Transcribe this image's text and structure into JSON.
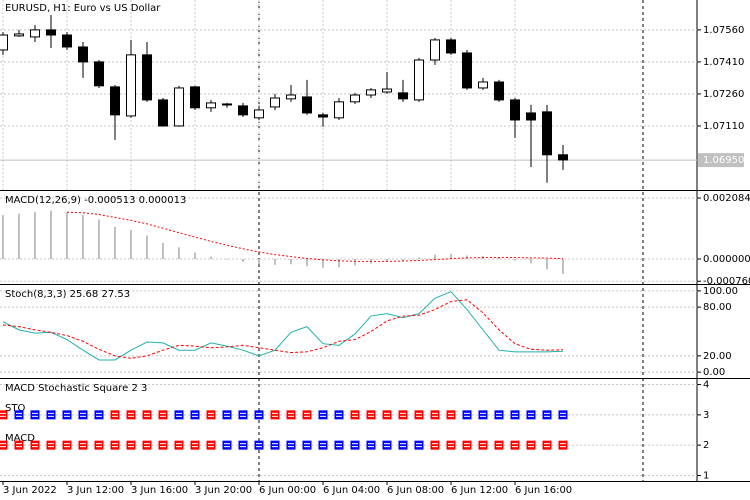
{
  "chart_data": [
    {
      "type": "candlestick",
      "title": "EURUSD, H1:  Euro vs US Dollar",
      "categories": [
        "3 Jun 2022",
        null,
        null,
        null,
        "3 Jun 12:00",
        null,
        null,
        null,
        "3 Jun 16:00",
        null,
        null,
        null,
        "3 Jun 20:00",
        null,
        null,
        null,
        "6 Jun 00:00",
        null,
        null,
        null,
        "6 Jun 04:00",
        null,
        null,
        null,
        "6 Jun 08:00",
        null,
        null,
        null,
        "6 Jun 12:00",
        null,
        null,
        null,
        "6 Jun 16:00",
        null,
        null,
        null
      ],
      "open": [
        1.07466,
        1.07532,
        1.07527,
        1.0756,
        1.07536,
        1.0748,
        1.0741,
        1.07293,
        1.07157,
        1.07443,
        1.07232,
        1.0711,
        1.07293,
        1.07195,
        1.07209,
        1.07204,
        1.07148,
        1.07199,
        1.07237,
        1.07246,
        1.07162,
        1.07148,
        1.07223,
        1.07255,
        1.07269,
        1.07265,
        1.07232,
        1.07419,
        1.07513,
        1.07452,
        1.07288,
        1.07316,
        1.07232,
        1.07171,
        1.07176,
        1.06975
      ],
      "high": [
        1.0755,
        1.0756,
        1.07583,
        1.0763,
        1.0755,
        1.07503,
        1.07419,
        1.07302,
        1.07513,
        1.07503,
        1.07241,
        1.07298,
        1.07298,
        1.07232,
        1.07218,
        1.07218,
        1.07204,
        1.0726,
        1.07302,
        1.07326,
        1.07171,
        1.07241,
        1.07265,
        1.07288,
        1.07363,
        1.07326,
        1.07429,
        1.07522,
        1.07522,
        1.07466,
        1.07335,
        1.07326,
        1.07241,
        1.07209,
        1.07209,
        1.07021
      ],
      "low": [
        1.07443,
        1.07527,
        1.07503,
        1.07475,
        1.07466,
        1.07335,
        1.07288,
        1.07045,
        1.07148,
        1.07223,
        1.07106,
        1.07106,
        1.07185,
        1.07176,
        1.07195,
        1.07152,
        1.07138,
        1.07185,
        1.07223,
        1.07162,
        1.07106,
        1.07138,
        1.07213,
        1.07241,
        1.0726,
        1.07223,
        1.07223,
        1.07396,
        1.07443,
        1.07279,
        1.07279,
        1.07223,
        1.07054,
        1.06918,
        1.06844,
        1.06904
      ],
      "close": [
        1.07536,
        1.07541,
        1.0756,
        1.07536,
        1.0748,
        1.0741,
        1.07298,
        1.07162,
        1.07443,
        1.07232,
        1.0711,
        1.07288,
        1.07195,
        1.07218,
        1.07213,
        1.07162,
        1.07185,
        1.07241,
        1.07255,
        1.07171,
        1.07152,
        1.07223,
        1.07255,
        1.07279,
        1.07283,
        1.07237,
        1.07419,
        1.07513,
        1.07452,
        1.07288,
        1.07316,
        1.07232,
        1.07138,
        1.07138,
        1.06975,
        1.06951
      ],
      "up_color": "#ffffff",
      "down_color": "#000000",
      "ylim": [
        1.0681,
        1.077
      ],
      "yticks": [
        {
          "value": 1.0756,
          "label": "1.07560"
        },
        {
          "value": 1.0741,
          "label": "1.07410"
        },
        {
          "value": 1.0726,
          "label": "1.07260"
        },
        {
          "value": 1.0711,
          "label": "1.07110"
        }
      ],
      "current_price": {
        "value": 1.0695,
        "label": "1.06950"
      },
      "grid": true
    },
    {
      "type": "macd",
      "title": "MACD(12,26,9) -0.000513 0.000013",
      "histogram": {
        "color": "#c0c0c0",
        "values": [
          0.0015,
          0.00155,
          0.0016,
          0.00165,
          0.00158,
          0.0015,
          0.00135,
          0.0011,
          0.001,
          0.0008,
          0.00055,
          0.0004,
          0.00022,
          8e-05,
          -2e-05,
          -0.0001,
          -0.00018,
          -0.0002,
          -0.00018,
          -0.00025,
          -0.0003,
          -0.00028,
          -0.00022,
          -0.00015,
          -0.0001,
          -8e-05,
          5e-05,
          0.00015,
          0.00018,
          0.00012,
          0.0001,
          5e-05,
          -5e-05,
          -0.00015,
          -0.00035,
          -0.000513
        ]
      },
      "signal": {
        "color": "#ff0000",
        "values": [
          null,
          null,
          null,
          null,
          0.0016,
          0.00158,
          0.00152,
          0.00142,
          0.00132,
          0.0012,
          0.00105,
          0.0009,
          0.00075,
          0.0006,
          0.00047,
          0.00035,
          0.00024,
          0.00015,
          8e-05,
          2e-05,
          -3e-05,
          -6e-05,
          -8e-05,
          -8e-05,
          -8e-05,
          -7e-05,
          -5e-05,
          -2e-05,
          1e-05,
          4e-05,
          5e-05,
          5e-05,
          5e-05,
          4e-05,
          3e-05,
          1.3e-05
        ]
      },
      "ylim": [
        -0.000786,
        0.00229
      ],
      "yticks": [
        {
          "value": 0.002084,
          "label": "0.002084"
        },
        {
          "value": 0,
          "label": "0.000000"
        },
        {
          "value": -0.00076,
          "label": "-0.000760"
        }
      ]
    },
    {
      "type": "stochastic",
      "title": "Stoch(8,3,3) 25.68 27.53",
      "main": {
        "color": "#20b2aa",
        "values": [
          62,
          52,
          48,
          49,
          40,
          27,
          15,
          15,
          27,
          37,
          36,
          27,
          27,
          36,
          32,
          27,
          20,
          27,
          49,
          56,
          35,
          33,
          47,
          69,
          72,
          67,
          72,
          91,
          99,
          77,
          52,
          27,
          25,
          25,
          25,
          25.68
        ]
      },
      "signal": {
        "color": "#ff0000",
        "values": [
          58,
          56,
          52,
          49,
          45,
          38,
          28,
          20,
          17,
          20,
          27,
          33,
          32,
          30,
          31,
          33,
          30,
          27,
          24,
          25,
          30,
          38,
          40,
          50,
          63,
          69,
          70,
          77,
          87,
          89,
          73,
          52,
          35,
          28,
          27,
          27.53
        ]
      },
      "ylim": [
        -6,
        106
      ],
      "yticks": [
        {
          "value": 100,
          "label": "100.00"
        },
        {
          "value": 80,
          "label": "80.00"
        },
        {
          "value": 20,
          "label": "20.00"
        },
        {
          "value": 0,
          "label": "0.00"
        }
      ]
    },
    {
      "type": "signal-squares",
      "title": "MACD Stochastic Square 2 3",
      "series": [
        {
          "name": "STO",
          "values": [
            3,
            3,
            3,
            3,
            3,
            3,
            3,
            3,
            3,
            3,
            3,
            3,
            3,
            3,
            3,
            3,
            3,
            3,
            3,
            3,
            3,
            3,
            3,
            3,
            3,
            3,
            3,
            3,
            3,
            3,
            3,
            3,
            3,
            3,
            3,
            3
          ],
          "colors": [
            "#ff0000",
            "#0000ff",
            "#0000ff",
            "#0000ff",
            "#0000ff",
            "#0000ff",
            "#0000ff",
            "#ff0000",
            "#ff0000",
            "#ff0000",
            "#ff0000",
            "#0000ff",
            "#0000ff",
            "#ff0000",
            "#0000ff",
            "#0000ff",
            "#0000ff",
            "#ff0000",
            "#ff0000",
            "#ff0000",
            "#0000ff",
            "#0000ff",
            "#ff0000",
            "#ff0000",
            "#ff0000",
            "#ff0000",
            "#ff0000",
            "#ff0000",
            "#ff0000",
            "#0000ff",
            "#0000ff",
            "#0000ff",
            "#0000ff",
            "#0000ff",
            "#0000ff",
            "#0000ff"
          ]
        },
        {
          "name": "MACD",
          "values": [
            2,
            2,
            2,
            2,
            2,
            2,
            2,
            2,
            2,
            2,
            2,
            2,
            2,
            2,
            2,
            2,
            2,
            2,
            2,
            2,
            2,
            2,
            2,
            2,
            2,
            2,
            2,
            2,
            2,
            2,
            2,
            2,
            2,
            2,
            2,
            2
          ],
          "colors": [
            "#ff0000",
            "#ff0000",
            "#ff0000",
            "#ff0000",
            "#ff0000",
            "#ff0000",
            "#ff0000",
            "#ff0000",
            "#ff0000",
            "#ff0000",
            "#ff0000",
            "#ff0000",
            "#ff0000",
            "#ff0000",
            "#0000ff",
            "#0000ff",
            "#0000ff",
            "#0000ff",
            "#0000ff",
            "#0000ff",
            "#0000ff",
            "#0000ff",
            "#0000ff",
            "#0000ff",
            "#0000ff",
            "#0000ff",
            "#0000ff",
            "#ff0000",
            "#ff0000",
            "#ff0000",
            "#ff0000",
            "#ff0000",
            "#ff0000",
            "#ff0000",
            "#ff0000",
            "#ff0000"
          ]
        }
      ],
      "ylim": [
        0.85,
        4.15
      ],
      "yticks": [
        4,
        3,
        2,
        1
      ]
    }
  ]
}
